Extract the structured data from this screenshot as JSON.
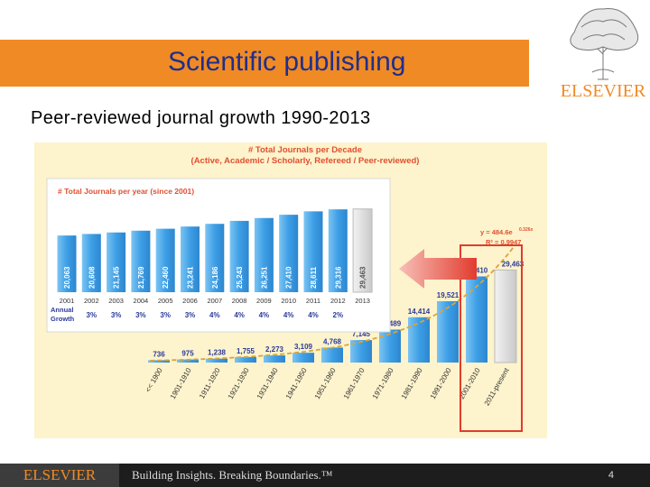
{
  "header": {
    "title": "Scientific publishing",
    "subtitle": "Peer-reviewed journal growth 1990-2013",
    "logo_text": "ELSEVIER"
  },
  "footer": {
    "logo_text": "ELSEVIER",
    "tagline": "Building Insights. Breaking Boundaries.™",
    "page_number": "4"
  },
  "colors": {
    "accent_orange": "#f08a24",
    "title_blue": "#1f2f8c",
    "bar_blue": "#4aa9e8",
    "highlight_red": "#e23b2e",
    "title_red": "#e05030",
    "trend_gold": "#d9a53a",
    "growth_blue": "#2a3a9a"
  },
  "chart_data": [
    {
      "type": "bar",
      "title": "# Total Journals per Decade",
      "subtitle": "(Active, Academic / Scholarly, Refereed / Peer-reviewed)",
      "categories": [
        "<< 1900",
        "1901-1910",
        "1911-1920",
        "1921-1930",
        "1931-1940",
        "1941-1950",
        "1951-1960",
        "1961-1970",
        "1971-1980",
        "1981-1990",
        "1991-2000",
        "2001-2010",
        "2011-present"
      ],
      "values": [
        736,
        975,
        1238,
        1755,
        2273,
        3109,
        4768,
        7145,
        10489,
        14414,
        19521,
        27410,
        29463
      ],
      "labels": [
        "736",
        "975",
        "1,238",
        "1,755",
        "2,273",
        "3,109",
        "4,768",
        "7,145",
        "10,489",
        "14,414",
        "19,521",
        "27,410",
        "29,463"
      ],
      "trendline_equation": "y = 484.6e^0.326x",
      "trendline_eq_text": "y = 484.6e",
      "trendline_exponent": "0.326x",
      "r_squared": "R² = 0.9947",
      "ylim": [
        0,
        31000
      ]
    },
    {
      "type": "bar",
      "title": "# Total Journals per year (since 2001)",
      "categories": [
        "2001",
        "2002",
        "2003",
        "2004",
        "2005",
        "2006",
        "2007",
        "2008",
        "2009",
        "2010",
        "2011",
        "2012",
        "2013"
      ],
      "values": [
        20063,
        20608,
        21145,
        21769,
        22460,
        23241,
        24186,
        25243,
        26251,
        27410,
        28611,
        29316,
        29463
      ],
      "labels": [
        "20,063",
        "20,608",
        "21,145",
        "21,769",
        "22,460",
        "23,241",
        "24,186",
        "25,243",
        "26,251",
        "27,410",
        "28,611",
        "29,316",
        "29,463"
      ],
      "growth_label": "Annual Growth",
      "growth": [
        "3%",
        "3%",
        "3%",
        "3%",
        "3%",
        "4%",
        "4%",
        "4%",
        "4%",
        "4%",
        "2%"
      ],
      "ylim": [
        0,
        30000
      ]
    }
  ]
}
